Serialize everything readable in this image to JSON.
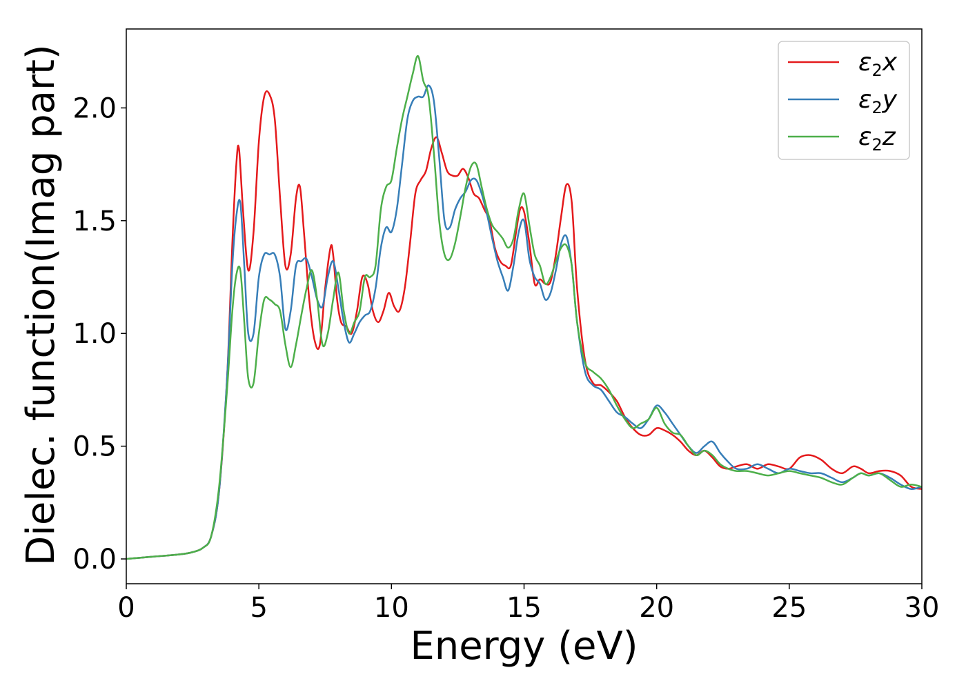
{
  "chart_data": {
    "type": "line",
    "xlabel": "Energy (eV)",
    "ylabel": "Dielec. function(Imag part)",
    "xlim": [
      0,
      30
    ],
    "ylim": [
      -0.11,
      2.35
    ],
    "xticks": [
      0,
      5,
      10,
      15,
      20,
      25,
      30
    ],
    "xtick_labels": [
      "0",
      "5",
      "10",
      "15",
      "20",
      "25",
      "30"
    ],
    "yticks": [
      0.0,
      0.5,
      1.0,
      1.5,
      2.0
    ],
    "ytick_labels": [
      "0.0",
      "0.5",
      "1.0",
      "1.5",
      "2.0"
    ],
    "grid": false,
    "legend_position": "top-right",
    "series": [
      {
        "name": "ε₂x",
        "legend_base": "ε",
        "legend_sub": "2",
        "legend_axis": "x",
        "color": "#e41a1c",
        "x": [
          0,
          1,
          2,
          2.5,
          2.9,
          3.2,
          3.5,
          3.8,
          4.0,
          4.15,
          4.25,
          4.4,
          4.6,
          4.8,
          5.0,
          5.2,
          5.4,
          5.6,
          5.8,
          6.0,
          6.2,
          6.4,
          6.55,
          6.7,
          6.9,
          7.1,
          7.3,
          7.5,
          7.7,
          7.8,
          7.95,
          8.1,
          8.3,
          8.5,
          8.7,
          8.9,
          9.1,
          9.3,
          9.5,
          9.7,
          9.9,
          10.1,
          10.3,
          10.5,
          10.7,
          10.9,
          11.1,
          11.3,
          11.5,
          11.7,
          11.9,
          12.1,
          12.3,
          12.5,
          12.7,
          12.9,
          13.1,
          13.3,
          13.5,
          13.7,
          13.9,
          14.1,
          14.3,
          14.5,
          14.7,
          14.85,
          15.0,
          15.2,
          15.4,
          15.6,
          15.8,
          16.0,
          16.2,
          16.4,
          16.6,
          16.8,
          17.0,
          17.3,
          17.6,
          17.9,
          18.2,
          18.5,
          18.8,
          19.1,
          19.4,
          19.7,
          20.0,
          20.3,
          20.6,
          20.9,
          21.2,
          21.5,
          21.8,
          22.1,
          22.4,
          22.7,
          23.0,
          23.4,
          23.8,
          24.2,
          24.6,
          25.0,
          25.4,
          25.8,
          26.2,
          26.6,
          27.0,
          27.4,
          27.7,
          28.0,
          28.4,
          28.8,
          29.2,
          29.6,
          30.0
        ],
        "values": [
          0.0,
          0.01,
          0.02,
          0.03,
          0.05,
          0.1,
          0.3,
          0.8,
          1.4,
          1.75,
          1.82,
          1.55,
          1.28,
          1.45,
          1.85,
          2.05,
          2.06,
          1.95,
          1.6,
          1.3,
          1.35,
          1.6,
          1.65,
          1.45,
          1.15,
          0.97,
          0.95,
          1.2,
          1.38,
          1.35,
          1.15,
          1.05,
          1.03,
          1.0,
          1.1,
          1.25,
          1.22,
          1.1,
          1.05,
          1.1,
          1.18,
          1.12,
          1.1,
          1.2,
          1.4,
          1.62,
          1.68,
          1.72,
          1.82,
          1.87,
          1.8,
          1.72,
          1.7,
          1.7,
          1.73,
          1.69,
          1.62,
          1.6,
          1.55,
          1.5,
          1.38,
          1.32,
          1.3,
          1.3,
          1.45,
          1.55,
          1.54,
          1.4,
          1.22,
          1.24,
          1.22,
          1.23,
          1.35,
          1.52,
          1.66,
          1.58,
          1.2,
          0.88,
          0.78,
          0.77,
          0.74,
          0.7,
          0.63,
          0.58,
          0.55,
          0.55,
          0.58,
          0.57,
          0.55,
          0.52,
          0.48,
          0.46,
          0.48,
          0.45,
          0.41,
          0.4,
          0.41,
          0.42,
          0.4,
          0.42,
          0.41,
          0.4,
          0.45,
          0.46,
          0.44,
          0.4,
          0.38,
          0.41,
          0.4,
          0.38,
          0.39,
          0.39,
          0.37,
          0.32,
          0.31
        ],
        "lw": 2.5
      },
      {
        "name": "ε₂y",
        "legend_base": "ε",
        "legend_sub": "2",
        "legend_axis": "y",
        "color": "#377eb8",
        "x": [
          0,
          1,
          2,
          2.5,
          2.9,
          3.2,
          3.5,
          3.8,
          4.0,
          4.15,
          4.3,
          4.45,
          4.6,
          4.8,
          5.0,
          5.2,
          5.4,
          5.6,
          5.8,
          6.0,
          6.2,
          6.4,
          6.6,
          6.8,
          7.0,
          7.2,
          7.4,
          7.6,
          7.8,
          8.0,
          8.2,
          8.4,
          8.6,
          8.8,
          9.0,
          9.2,
          9.4,
          9.6,
          9.8,
          10.0,
          10.2,
          10.4,
          10.6,
          10.8,
          11.0,
          11.2,
          11.4,
          11.6,
          11.8,
          12.0,
          12.2,
          12.4,
          12.6,
          12.8,
          13.0,
          13.2,
          13.4,
          13.6,
          13.8,
          14.0,
          14.2,
          14.4,
          14.6,
          14.8,
          15.0,
          15.2,
          15.4,
          15.6,
          15.8,
          16.0,
          16.2,
          16.4,
          16.6,
          16.8,
          17.0,
          17.3,
          17.6,
          17.9,
          18.2,
          18.5,
          18.8,
          19.1,
          19.4,
          19.7,
          20.0,
          20.3,
          20.6,
          20.9,
          21.2,
          21.5,
          21.8,
          22.1,
          22.4,
          22.7,
          23.0,
          23.4,
          23.8,
          24.2,
          24.6,
          25.0,
          25.4,
          25.8,
          26.2,
          26.6,
          27.0,
          27.4,
          27.7,
          28.0,
          28.4,
          28.8,
          29.2,
          29.6,
          30.0
        ],
        "values": [
          0.0,
          0.01,
          0.02,
          0.03,
          0.05,
          0.1,
          0.3,
          0.8,
          1.3,
          1.52,
          1.58,
          1.3,
          1.0,
          1.0,
          1.25,
          1.35,
          1.35,
          1.35,
          1.25,
          1.02,
          1.1,
          1.3,
          1.32,
          1.33,
          1.25,
          1.15,
          1.12,
          1.25,
          1.32,
          1.2,
          1.05,
          0.96,
          1.0,
          1.05,
          1.08,
          1.1,
          1.2,
          1.38,
          1.47,
          1.45,
          1.55,
          1.75,
          1.95,
          2.03,
          2.05,
          2.05,
          2.1,
          2.03,
          1.78,
          1.5,
          1.47,
          1.55,
          1.6,
          1.63,
          1.68,
          1.68,
          1.62,
          1.53,
          1.42,
          1.32,
          1.25,
          1.19,
          1.3,
          1.45,
          1.5,
          1.33,
          1.25,
          1.22,
          1.15,
          1.18,
          1.28,
          1.4,
          1.43,
          1.3,
          1.05,
          0.83,
          0.77,
          0.75,
          0.7,
          0.65,
          0.63,
          0.6,
          0.58,
          0.62,
          0.68,
          0.65,
          0.6,
          0.55,
          0.5,
          0.47,
          0.5,
          0.52,
          0.47,
          0.43,
          0.4,
          0.4,
          0.42,
          0.4,
          0.38,
          0.4,
          0.39,
          0.38,
          0.38,
          0.36,
          0.34,
          0.36,
          0.38,
          0.37,
          0.38,
          0.36,
          0.33,
          0.31,
          0.32
        ],
        "lw": 2.5
      },
      {
        "name": "ε₂z",
        "legend_base": "ε",
        "legend_sub": "2",
        "legend_axis": "z",
        "color": "#4daf4a",
        "x": [
          0,
          1,
          2,
          2.5,
          2.9,
          3.2,
          3.5,
          3.8,
          4.0,
          4.15,
          4.3,
          4.45,
          4.6,
          4.8,
          5.0,
          5.2,
          5.4,
          5.6,
          5.8,
          6.0,
          6.2,
          6.4,
          6.6,
          6.8,
          7.0,
          7.2,
          7.4,
          7.6,
          7.8,
          8.0,
          8.2,
          8.4,
          8.6,
          8.8,
          9.0,
          9.2,
          9.4,
          9.6,
          9.8,
          10.0,
          10.2,
          10.4,
          10.6,
          10.8,
          11.0,
          11.2,
          11.4,
          11.6,
          11.8,
          12.0,
          12.2,
          12.4,
          12.6,
          12.8,
          13.0,
          13.2,
          13.4,
          13.6,
          13.8,
          14.0,
          14.2,
          14.4,
          14.6,
          14.8,
          15.0,
          15.2,
          15.4,
          15.6,
          15.8,
          16.0,
          16.2,
          16.4,
          16.6,
          16.8,
          17.0,
          17.3,
          17.6,
          17.9,
          18.2,
          18.5,
          18.8,
          19.1,
          19.4,
          19.7,
          20.0,
          20.3,
          20.6,
          20.9,
          21.2,
          21.5,
          21.8,
          22.1,
          22.4,
          22.7,
          23.0,
          23.4,
          23.8,
          24.2,
          24.6,
          25.0,
          25.4,
          25.8,
          26.2,
          26.6,
          27.0,
          27.4,
          27.7,
          28.0,
          28.4,
          28.8,
          29.2,
          29.6,
          30.0
        ],
        "values": [
          0.0,
          0.01,
          0.02,
          0.03,
          0.05,
          0.1,
          0.32,
          0.75,
          1.1,
          1.26,
          1.28,
          1.05,
          0.8,
          0.78,
          1.0,
          1.15,
          1.15,
          1.13,
          1.1,
          0.95,
          0.85,
          0.95,
          1.08,
          1.2,
          1.28,
          1.15,
          0.95,
          1.0,
          1.15,
          1.27,
          1.1,
          1.0,
          1.05,
          1.1,
          1.25,
          1.25,
          1.3,
          1.55,
          1.65,
          1.68,
          1.82,
          1.95,
          2.05,
          2.15,
          2.23,
          2.12,
          2.05,
          1.8,
          1.5,
          1.35,
          1.33,
          1.4,
          1.52,
          1.65,
          1.74,
          1.75,
          1.65,
          1.55,
          1.48,
          1.45,
          1.42,
          1.38,
          1.42,
          1.55,
          1.62,
          1.48,
          1.35,
          1.3,
          1.22,
          1.25,
          1.32,
          1.38,
          1.39,
          1.3,
          1.05,
          0.87,
          0.83,
          0.8,
          0.75,
          0.68,
          0.62,
          0.58,
          0.6,
          0.62,
          0.67,
          0.6,
          0.56,
          0.55,
          0.5,
          0.46,
          0.48,
          0.46,
          0.42,
          0.4,
          0.39,
          0.39,
          0.38,
          0.37,
          0.38,
          0.39,
          0.38,
          0.37,
          0.36,
          0.34,
          0.33,
          0.36,
          0.38,
          0.37,
          0.38,
          0.35,
          0.32,
          0.33,
          0.32
        ],
        "lw": 2.5
      }
    ]
  }
}
